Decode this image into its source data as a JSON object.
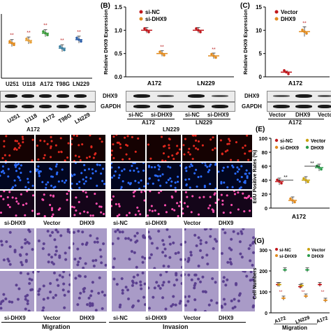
{
  "panels": {
    "A": {
      "ticks": [
        "U251",
        "U118",
        "A172",
        "T98G",
        "LN229"
      ],
      "stars": "**",
      "blot_labels": [
        "U251",
        "U118",
        "A172",
        "T98G",
        "LN229"
      ]
    },
    "B": {
      "letter": "(B)",
      "ylabel": "Relative DHX9 Expression",
      "legend": [
        "si-NC",
        "si-DHX9"
      ],
      "groups": [
        "A172",
        "LN229"
      ],
      "blot_rows": [
        "DHX9",
        "GAPDH"
      ],
      "blot_lanes": [
        "si-NC",
        "si-DHX9",
        "si-NC",
        "si-DHX9"
      ],
      "blot_groups": [
        "A172",
        "LN229"
      ],
      "colors": {
        "si-NC": "#c0171c",
        "si-DHX9": "#e08a1e"
      }
    },
    "C": {
      "letter": "(C)",
      "ylabel": "Relative DHX9 Expression",
      "legend": [
        "Vector",
        "DHX9"
      ],
      "groups": [
        "A172"
      ],
      "blot_rows": [
        "DHX9",
        "GAPDH"
      ],
      "blot_lanes": [
        "Vector",
        "DHX9",
        "Vector"
      ],
      "blot_groups": [
        "A172"
      ],
      "colors": {
        "Vector": "#c0171c",
        "DHX9": "#e08a1e"
      }
    },
    "D": {
      "groups": [
        "A172",
        "LN229"
      ],
      "lanes": [
        "si-DHX9",
        "Vector",
        "DHX9",
        "si-NC",
        "si-DHX9",
        "Vector",
        "DHX9"
      ]
    },
    "E": {
      "letter": "(E)",
      "ylabel": "EdU Positive Rates (%)",
      "legend": [
        "si-NC",
        "si-DHX9",
        "Vector",
        "DHX9"
      ],
      "xlabel": "A172",
      "stars": "**"
    },
    "F": {
      "rows_bottom": [
        "si-DHX9",
        "Vector",
        "DHX9",
        "si-NC",
        "si-DHX9",
        "Vector",
        "DHX9"
      ],
      "groups": [
        "Migration",
        "Invasion"
      ]
    },
    "G": {
      "letter": "(G)",
      "ylabel": "Cell Numbers",
      "legend": [
        "si-NC",
        "si-DHX9",
        "Vector",
        "DHX9"
      ],
      "xticks": [
        "A172",
        "LN229",
        "A172"
      ],
      "xlabel": "Migration",
      "stars": "**"
    }
  },
  "chart_data": [
    {
      "type": "bar",
      "title": "",
      "categories": [
        "U251",
        "U118",
        "A172",
        "T98G",
        "LN229"
      ],
      "values": [
        0.82,
        0.88,
        1.05,
        0.7,
        0.9
      ],
      "xlabel": "",
      "ylabel": ""
    },
    {
      "type": "bar",
      "categories": [
        "A172",
        "LN229"
      ],
      "series": [
        {
          "name": "si-NC",
          "values": [
            1.0,
            1.0
          ]
        },
        {
          "name": "si-DHX9",
          "values": [
            0.5,
            0.45
          ]
        }
      ],
      "ylim": [
        0,
        1.5
      ],
      "yticks": [
        "0.0",
        "0.5",
        "1.0",
        "1.5"
      ],
      "ylabel": "Relative DHX9 Expression"
    },
    {
      "type": "bar",
      "categories": [
        "A172"
      ],
      "series": [
        {
          "name": "Vector",
          "values": [
            1.0
          ]
        },
        {
          "name": "DHX9",
          "values": [
            9.7
          ]
        }
      ],
      "ylim": [
        0,
        15
      ],
      "yticks": [
        "0",
        "5",
        "10",
        "15"
      ],
      "ylabel": "Relative DHX9 Expression"
    },
    {
      "type": "bar",
      "categories": [
        "A172"
      ],
      "series": [
        {
          "name": "si-NC",
          "values": [
            38
          ]
        },
        {
          "name": "si-DHX9",
          "values": [
            11
          ]
        },
        {
          "name": "Vector",
          "values": [
            40
          ]
        },
        {
          "name": "DHX9",
          "values": [
            58
          ]
        }
      ],
      "ylim": [
        0,
        100
      ],
      "yticks": [
        "0",
        "20",
        "40",
        "60",
        "80",
        "100"
      ],
      "ylabel": "EdU Positive Rates (%)"
    },
    {
      "type": "bar",
      "categories": [
        "A172",
        "LN229",
        "A172"
      ],
      "series": [
        {
          "name": "si-NC",
          "values": [
            135,
            125,
            135
          ]
        },
        {
          "name": "si-DHX9",
          "values": [
            70,
            80,
            60
          ]
        },
        {
          "name": "Vector",
          "values": [
            135,
            130,
            0
          ]
        },
        {
          "name": "DHX9",
          "values": [
            205,
            205,
            0
          ]
        }
      ],
      "ylim": [
        0,
        300
      ],
      "yticks": [
        "0",
        "100",
        "200",
        "300"
      ],
      "ylabel": "Cell Numbers"
    }
  ]
}
